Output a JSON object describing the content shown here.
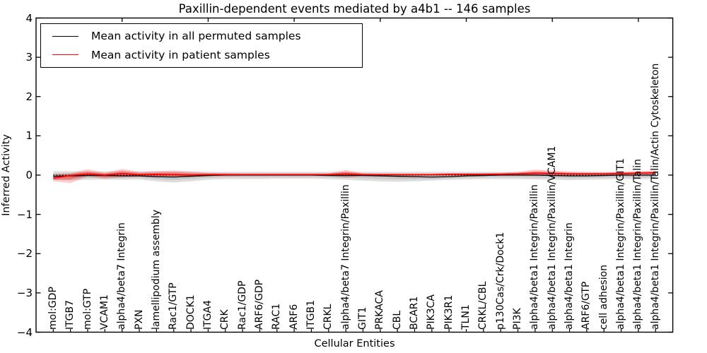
{
  "chart_data": {
    "type": "line",
    "title": "Paxillin-dependent events mediated by a4b1 -- 146 samples",
    "xlabel": "Cellular Entities",
    "ylabel": "Inferred Activity",
    "xlim": [
      0,
      37
    ],
    "ylim": [
      -4,
      4
    ],
    "grid": false,
    "legend_position": "upper left",
    "yticks": {
      "values": [
        4,
        3,
        2,
        1,
        0,
        -1,
        -2,
        -3,
        -4
      ],
      "labels": [
        "4",
        "3",
        "2",
        "1",
        "0",
        "−1",
        "−2",
        "−3",
        "−4"
      ]
    },
    "xticks_top_values": [
      5,
      10,
      15,
      20,
      25,
      30,
      35
    ],
    "zero_reference_line": 0,
    "categories": [
      "mol:GDP",
      "ITGB7",
      "mol:GTP",
      "VCAM1",
      "alpha4/beta7 Integrin",
      "PXN",
      "lamellipodium assembly",
      "Rac1/GTP",
      "DOCK1",
      "ITGA4",
      "CRK",
      "Rac1/GDP",
      "ARF6/GDP",
      "RAC1",
      "ARF6",
      "ITGB1",
      "CRKL",
      "alpha4/beta7 Integrin/Paxillin",
      "GIT1",
      "PRKACA",
      "CBL",
      "BCAR1",
      "PIK3CA",
      "PIK3R1",
      "TLN1",
      "CRKL/CBL",
      "p130Cas/Crk/Dock1",
      "PI3K",
      "alpha4/beta1 Integrin/Paxillin",
      "alpha4/beta1 Integrin/Paxillin/VCAM1",
      "alpha4/beta1 Integrin",
      "ARF6/GTP",
      "cell adhesion",
      "alpha4/beta1 Integrin/Paxillin/GIT1",
      "alpha4/beta1 Integrin/Paxillin/Talin",
      "alpha4/beta1 Integrin/Paxillin/Talin/Actin Cytoskeleton"
    ],
    "series": [
      {
        "name": "Mean activity in all permuted samples",
        "color": "#000000",
        "band_color": "rgba(0,0,0,0.13)",
        "band_inner_color": "rgba(0,0,0,0.10)",
        "line_width": 1.3,
        "mean": [
          -0.03,
          -0.02,
          -0.01,
          -0.01,
          -0.02,
          -0.02,
          -0.04,
          -0.05,
          -0.03,
          -0.01,
          0,
          0,
          0,
          0,
          0,
          0,
          -0.01,
          -0.01,
          -0.01,
          -0.02,
          -0.03,
          -0.04,
          -0.05,
          -0.04,
          -0.02,
          -0.01,
          0,
          0,
          0,
          -0.01,
          -0.02,
          -0.02,
          -0.01,
          0,
          0,
          0
        ],
        "upper": [
          0.1,
          0.1,
          0.09,
          0.09,
          0.1,
          0.09,
          0.1,
          0.09,
          0.09,
          0.08,
          0.08,
          0.08,
          0.08,
          0.08,
          0.08,
          0.08,
          0.08,
          0.08,
          0.08,
          0.08,
          0.08,
          0.08,
          0.08,
          0.08,
          0.08,
          0.08,
          0.08,
          0.08,
          0.07,
          0.07,
          0.06,
          0.06,
          0.06,
          0.06,
          0.06,
          0.06
        ],
        "lower": [
          -0.12,
          -0.13,
          -0.12,
          -0.11,
          -0.12,
          -0.11,
          -0.16,
          -0.19,
          -0.16,
          -0.12,
          -0.1,
          -0.1,
          -0.1,
          -0.09,
          -0.09,
          -0.09,
          -0.1,
          -0.12,
          -0.14,
          -0.16,
          -0.17,
          -0.16,
          -0.14,
          -0.12,
          -0.11,
          -0.1,
          -0.1,
          -0.1,
          -0.11,
          -0.12,
          -0.13,
          -0.12,
          -0.11,
          -0.1,
          -0.1,
          -0.1
        ]
      },
      {
        "name": "Mean activity in patient samples",
        "color": "#ff0000",
        "band_color": "rgba(255,0,0,0.20)",
        "band_inner_color": "rgba(255,0,0,0.28)",
        "line_width": 1.7,
        "mean": [
          -0.08,
          -0.01,
          0.03,
          0.0,
          0.04,
          0.01,
          0.02,
          0.01,
          0.0,
          0.01,
          0.01,
          0.01,
          0.01,
          0.01,
          0.01,
          0.01,
          0.01,
          0.03,
          0.01,
          0.01,
          0.01,
          0.01,
          0.01,
          0.02,
          0.02,
          0.02,
          0.02,
          0.03,
          0.05,
          0.04,
          0.03,
          0.03,
          0.03,
          0.04,
          0.05,
          0.06
        ],
        "upper": [
          0.03,
          0.05,
          0.15,
          0.06,
          0.16,
          0.08,
          0.1,
          0.12,
          0.09,
          0.06,
          0.05,
          0.04,
          0.04,
          0.04,
          0.04,
          0.04,
          0.05,
          0.13,
          0.05,
          0.04,
          0.04,
          0.04,
          0.04,
          0.05,
          0.05,
          0.05,
          0.06,
          0.08,
          0.14,
          0.12,
          0.09,
          0.08,
          0.08,
          0.09,
          0.1,
          0.12
        ],
        "lower": [
          -0.16,
          -0.2,
          -0.04,
          -0.1,
          -0.06,
          -0.04,
          -0.06,
          -0.05,
          -0.04,
          -0.03,
          -0.03,
          -0.02,
          -0.02,
          -0.02,
          -0.02,
          -0.02,
          -0.02,
          -0.07,
          -0.02,
          -0.02,
          -0.02,
          -0.02,
          -0.02,
          -0.02,
          -0.02,
          -0.02,
          -0.01,
          -0.01,
          -0.02,
          -0.01,
          -0.01,
          0.0,
          0.0,
          0.0,
          0.01,
          0.01
        ]
      }
    ],
    "legend": [
      {
        "label": "Mean activity in all permuted samples",
        "color": "#000000"
      },
      {
        "label": "Mean activity in patient samples",
        "color": "#ff0000"
      }
    ],
    "colors": {
      "frame": "#000000",
      "zero_line": "#000000",
      "background": "#ffffff"
    }
  }
}
